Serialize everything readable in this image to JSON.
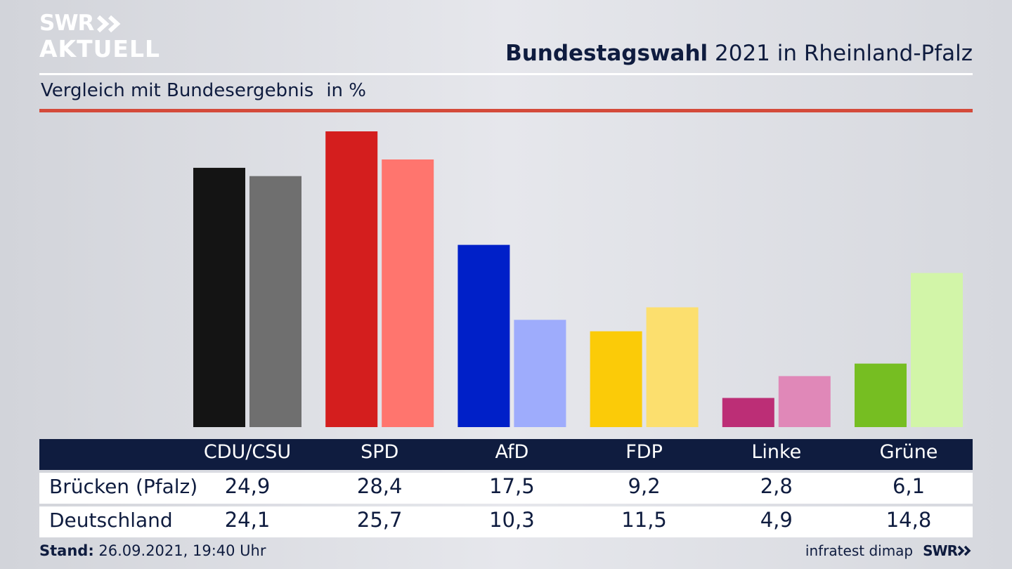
{
  "header": {
    "logo_line1": "SWR",
    "logo_line2": "AKTUELL",
    "title_bold": "Bundestagswahl",
    "title_rest": " 2021 in Rheinland-Pfalz",
    "subtitle": "Vergleich mit Bundesergebnis",
    "unit": "in %"
  },
  "colors": {
    "navy": "#0f1c3f",
    "accent_red": "#d44a3a"
  },
  "chart_data": {
    "type": "bar",
    "categories": [
      "CDU/CSU",
      "SPD",
      "AfD",
      "FDP",
      "Linke",
      "Grüne"
    ],
    "series": [
      {
        "name": "Brücken (Pfalz)",
        "values": [
          24.9,
          28.4,
          17.5,
          9.2,
          2.8,
          6.1
        ]
      },
      {
        "name": "Deutschland",
        "values": [
          24.1,
          25.7,
          10.3,
          11.5,
          4.9,
          14.8
        ]
      }
    ],
    "colors_primary": [
      "#141414",
      "#d41e1e",
      "#0020c8",
      "#fbcb08",
      "#bc2e76",
      "#76be22"
    ],
    "colors_secondary": [
      "#6f6f6f",
      "#ff756e",
      "#9eacfc",
      "#fcdf6e",
      "#e088b8",
      "#d2f5a8"
    ],
    "value_labels_primary": [
      "24,9",
      "28,4",
      "17,5",
      "9,2",
      "2,8",
      "6,1"
    ],
    "value_labels_secondary": [
      "24,1",
      "25,7",
      "10,3",
      "11,5",
      "4,9",
      "14,8"
    ],
    "ylim": [
      0,
      28.4
    ],
    "grid": false
  },
  "footer": {
    "stand_label": "Stand:",
    "stand_value": " 26.09.2021, 19:40 Uhr",
    "source": "infratest dimap",
    "brand": "SWR"
  }
}
